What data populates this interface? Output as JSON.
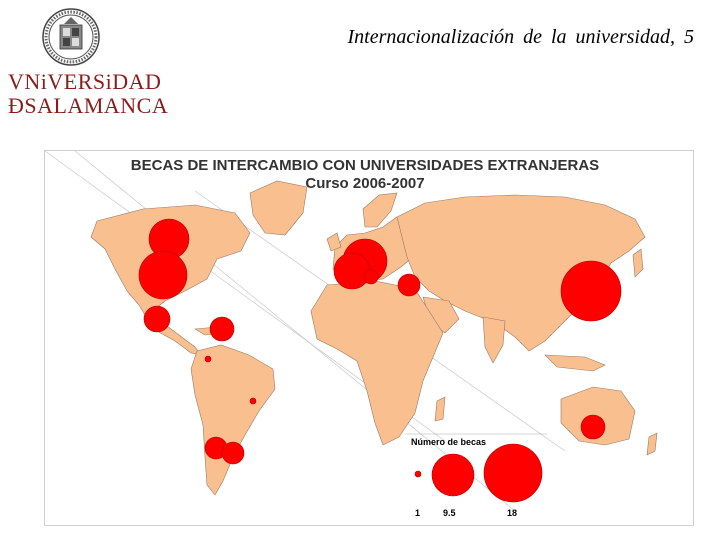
{
  "header": {
    "title": "Internacionalización de la universidad, 5",
    "logo_line1": "VNiVERSiDAD",
    "logo_line2": "ÐSALAMANCA"
  },
  "map": {
    "title": "BECAS DE INTERCAMBIO CON UNIVERSIDADES EXTRANJERAS",
    "subtitle": "Curso 2006-2007",
    "land_color": "#f9bf8f",
    "marker_color": "#ff0000"
  },
  "legend": {
    "title": "Número de becas",
    "values": [
      "1",
      "9.5",
      "18"
    ]
  }
}
